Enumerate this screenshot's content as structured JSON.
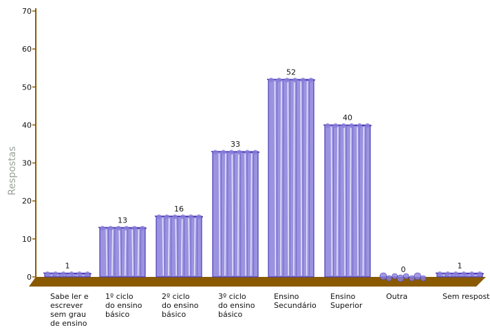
{
  "chart_data": {
    "type": "bar",
    "ylabel": "Respostas",
    "ylim": [
      0,
      70
    ],
    "yticks": [
      0,
      10,
      20,
      30,
      40,
      50,
      60,
      70
    ],
    "categories": [
      "Sabe ler e escrever sem grau de ensino",
      "1º ciclo do ensino básico",
      "2º ciclo do ensino básico",
      "3º ciclo do ensino básico",
      "Ensino Secundário",
      "Ensino Superior",
      "Outra",
      "Sem resposta"
    ],
    "category_lines": [
      [
        "Sabe ler e",
        "escrever",
        "sem grau",
        "de ensino"
      ],
      [
        "1º ciclo",
        "do ensino",
        "básico"
      ],
      [
        "2º ciclo",
        "do ensino",
        "básico"
      ],
      [
        "3º ciclo",
        "do ensino",
        "básico"
      ],
      [
        "Ensino",
        "Secundário"
      ],
      [
        "Ensino",
        "Superior"
      ],
      [
        "Outra"
      ],
      [
        "Sem resposta"
      ]
    ],
    "values": [
      1,
      13,
      16,
      33,
      52,
      40,
      0,
      1
    ],
    "colors": {
      "bar_fill": "#8a80dc",
      "bar_stroke": "#4a3cb0",
      "floor": "#8a5a00",
      "axis": "#8a5a00"
    }
  }
}
